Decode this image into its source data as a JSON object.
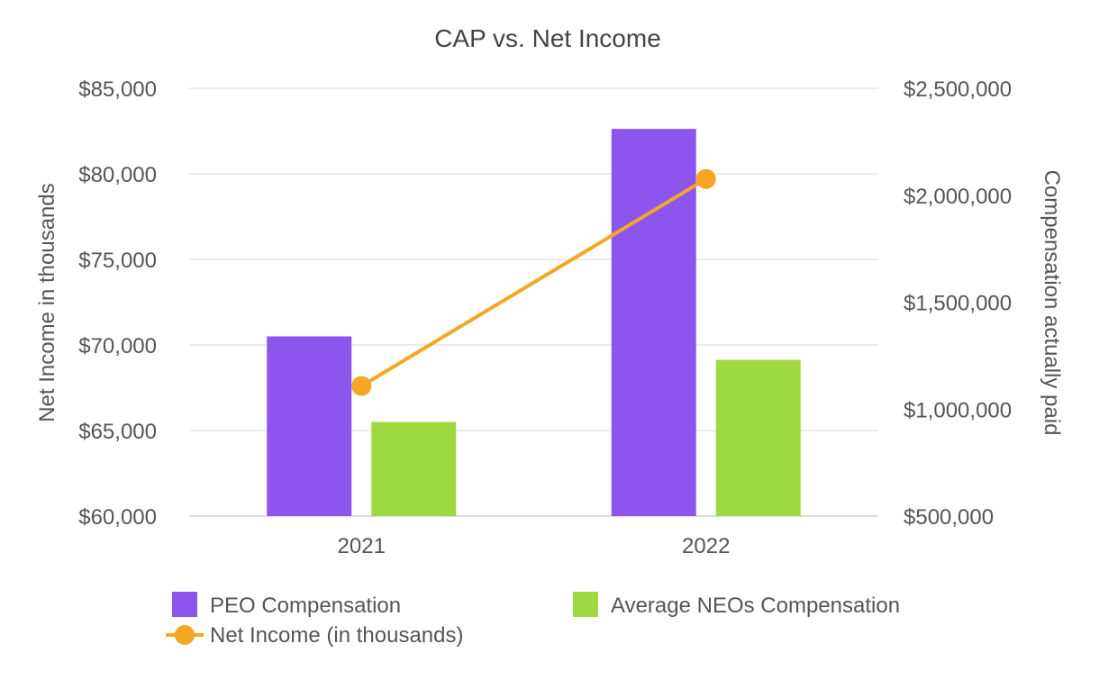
{
  "chart_data": {
    "type": "bar",
    "title": "CAP vs. Net Income",
    "categories": [
      "2021",
      "2022"
    ],
    "ylabel_left": "Net Income in thousands",
    "ylabel_right": "Compensation actually paid",
    "ylim_left": [
      60000,
      85000
    ],
    "ylim_right": [
      500000,
      2500000
    ],
    "yticks_left": [
      "$60,000",
      "$65,000",
      "$70,000",
      "$75,000",
      "$80,000",
      "$85,000"
    ],
    "yticks_right": [
      "$500,000",
      "$1,000,000",
      "$1,500,000",
      "$2,000,000",
      "$2,500,000"
    ],
    "grid": true,
    "legend_position": "bottom",
    "series": [
      {
        "name": "PEO Compensation",
        "kind": "bar",
        "axis": "right",
        "color": "#8b55ee",
        "values": [
          1340000,
          2310000
        ]
      },
      {
        "name": "Average NEOs Compensation",
        "kind": "bar",
        "axis": "right",
        "color": "#9ed941",
        "values": [
          940000,
          1230000
        ]
      },
      {
        "name": "Net Income (in thousands)",
        "kind": "line",
        "axis": "left",
        "color": "#f5a623",
        "values": [
          67600,
          79700
        ]
      }
    ]
  }
}
